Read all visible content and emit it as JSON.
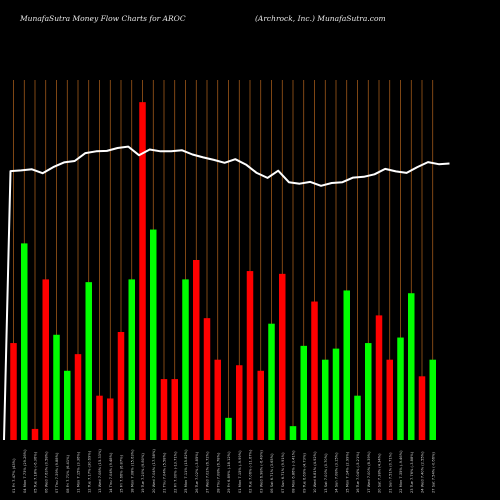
{
  "header": {
    "left": "MunafaSutra  Money Flow  Charts for AROC",
    "right": "(Archrock,  Inc.) MunafaSutra.com"
  },
  "colors": {
    "background": "#000000",
    "grid": "#b5651d",
    "up": "#00ff00",
    "down": "#ff0000",
    "line": "#ffffff"
  },
  "chart_data": {
    "type": "bar",
    "title": "",
    "xlabel": "",
    "ylabel": "",
    "grid": true,
    "categories": [
      "01 Fri 7.47% (43%)",
      "04 Mon 7.73% (29.26%)",
      "05 Tue 7.18% (-6.36%)",
      "06 Wed 7.63% (0.58%)",
      "07 Thu 7.39% (9.88%)",
      "08 Fri 7.71% (6.41%)",
      "11 Mon 7.15% (3.36%)",
      "12 Tue 7.17% (30.69%)",
      "13 Wed 7.08% (15.33%)",
      "14 Thu 7.04% (9.48%)",
      "15 Fri 7.66% (6.87%)",
      "18 Mon 7.08% (15.63%)",
      "19 Tue 7.20% (9.80%)",
      "20 Wed 7.04% (17.58%)",
      "21 Thu 7.04% (5.58%)",
      "22 Fri 7.00% (-13.71%)",
      "25 Mon 7.11% (15.82%)",
      "26 Tue 7.02% (-3.85%)",
      "27 Wed 7.02% (6.72%)",
      "28 Thu 7.08% (6.78%)",
      "29 Fri 6.89% (-18.12%)",
      "01 Mon 7.15% (-9.99%)",
      "02 Tue 7.06% (-11.67%)",
      "03 Wed 6.98% (-6.49%)",
      "06 Sat 6.71% (3.65%)",
      "07 Sun 6.71% (9.91%)",
      "08 Mon 6.86% (-3.41%)",
      "09 Tue 6.69% (4.73%)",
      "10 Wed 6.81% (4.92%)",
      "13 Sat 7.00% (0.70%)",
      "14 Sun 7.08% (3.15%)",
      "15 Mon 7.14% (2.99%)",
      "16 Tue 7.04% (-5.21%)",
      "17 Wed 7.00% (8.39%)",
      "20 Sat 7.38% (4.34%)",
      "21 Sun 7.51% (0.71%)",
      "22 Mon 7.35% (-9.46%)",
      "23 Tue 7.76% (-3.88%)",
      "24 Wed 7.40% (2.55%)",
      "27 Sat 7.54% (-0.66%)"
    ],
    "price_line": [
      7.47,
      7.49,
      7.52,
      7.41,
      7.58,
      7.71,
      7.75,
      7.97,
      8.02,
      8.03,
      8.11,
      8.15,
      7.91,
      8.07,
      8.02,
      8.02,
      8.05,
      7.93,
      7.85,
      7.78,
      7.7,
      7.8,
      7.65,
      7.42,
      7.28,
      7.48,
      7.16,
      7.12,
      7.17,
      7.06,
      7.14,
      7.16,
      7.29,
      7.31,
      7.38,
      7.53,
      7.46,
      7.42,
      7.58,
      7.72,
      7.66,
      7.68
    ],
    "price_ylim": [
      0,
      10
    ],
    "bars": [
      {
        "dir": "down",
        "value": 35
      },
      {
        "dir": "up",
        "value": 71
      },
      {
        "dir": "down",
        "value": 4
      },
      {
        "dir": "down",
        "value": 58
      },
      {
        "dir": "up",
        "value": 38
      },
      {
        "dir": "up",
        "value": 25
      },
      {
        "dir": "down",
        "value": 31
      },
      {
        "dir": "up",
        "value": 57
      },
      {
        "dir": "down",
        "value": 16
      },
      {
        "dir": "down",
        "value": 15
      },
      {
        "dir": "down",
        "value": 39
      },
      {
        "dir": "up",
        "value": 58
      },
      {
        "dir": "down",
        "value": 122
      },
      {
        "dir": "up",
        "value": 76
      },
      {
        "dir": "down",
        "value": 22
      },
      {
        "dir": "down",
        "value": 22
      },
      {
        "dir": "up",
        "value": 58
      },
      {
        "dir": "down",
        "value": 65
      },
      {
        "dir": "down",
        "value": 44
      },
      {
        "dir": "down",
        "value": 29
      },
      {
        "dir": "up",
        "value": 8
      },
      {
        "dir": "down",
        "value": 27
      },
      {
        "dir": "down",
        "value": 61
      },
      {
        "dir": "down",
        "value": 25
      },
      {
        "dir": "up",
        "value": 42
      },
      {
        "dir": "down",
        "value": 60
      },
      {
        "dir": "up",
        "value": 5
      },
      {
        "dir": "up",
        "value": 34
      },
      {
        "dir": "down",
        "value": 50
      },
      {
        "dir": "up",
        "value": 29
      },
      {
        "dir": "up",
        "value": 33
      },
      {
        "dir": "up",
        "value": 54
      },
      {
        "dir": "up",
        "value": 16
      },
      {
        "dir": "up",
        "value": 35
      },
      {
        "dir": "down",
        "value": 45
      },
      {
        "dir": "down",
        "value": 29
      },
      {
        "dir": "up",
        "value": 37
      },
      {
        "dir": "up",
        "value": 53
      },
      {
        "dir": "down",
        "value": 23
      },
      {
        "dir": "up",
        "value": 29
      }
    ],
    "bars_ylim": [
      0,
      130
    ]
  }
}
